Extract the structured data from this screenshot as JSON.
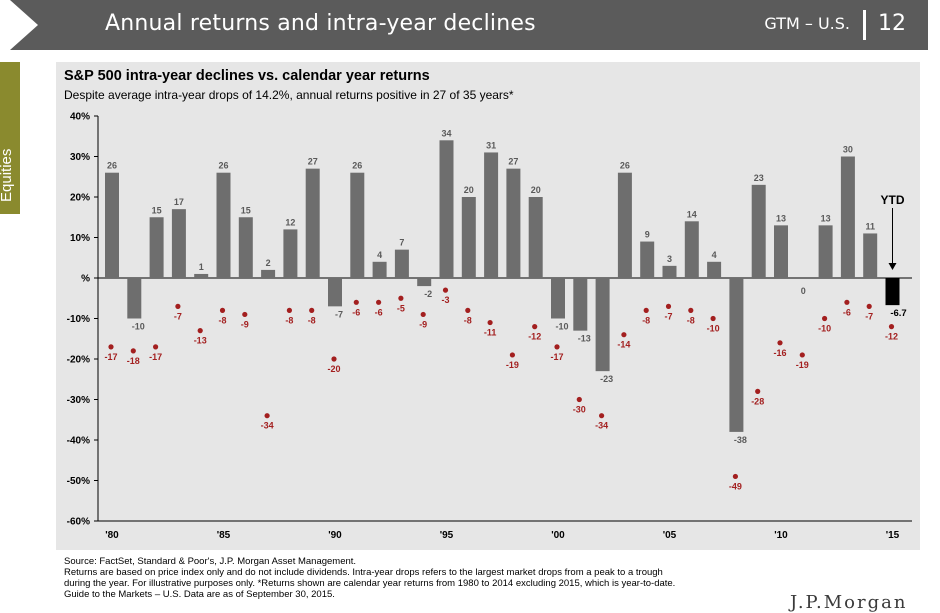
{
  "header": {
    "title": "Annual returns and intra-year declines",
    "section": "GTM – U.S.",
    "page_number": "12"
  },
  "side_tab": {
    "label": "Equities"
  },
  "chart_data": {
    "type": "bar",
    "title": "S&P 500 intra-year declines vs. calendar year returns",
    "subtitle": "Despite average intra-year drops of 14.2%, annual returns positive in 27 of 35 years*",
    "years": [
      1980,
      1981,
      1982,
      1983,
      1984,
      1985,
      1986,
      1987,
      1988,
      1989,
      1990,
      1991,
      1992,
      1993,
      1994,
      1995,
      1996,
      1997,
      1998,
      1999,
      2000,
      2001,
      2002,
      2003,
      2004,
      2005,
      2006,
      2007,
      2008,
      2009,
      2010,
      2011,
      2012,
      2013,
      2014,
      2015
    ],
    "x_tick_labels": [
      "'80",
      "'85",
      "'90",
      "'95",
      "'00",
      "'05",
      "'10",
      "'15"
    ],
    "x_tick_years": [
      1980,
      1985,
      1990,
      1995,
      2000,
      2005,
      2010,
      2015
    ],
    "series": [
      {
        "name": "Calendar year return",
        "values": [
          26,
          -10,
          15,
          17,
          1,
          26,
          15,
          2,
          12,
          27,
          -7,
          26,
          4,
          7,
          -2,
          34,
          20,
          31,
          27,
          20,
          -10,
          -13,
          -23,
          26,
          9,
          3,
          14,
          4,
          -38,
          23,
          13,
          0,
          13,
          30,
          11,
          -6.7
        ]
      },
      {
        "name": "Intra-year decline",
        "values": [
          -17,
          -18,
          -17,
          -7,
          -13,
          -8,
          -9,
          -34,
          -8,
          -8,
          -20,
          -6,
          -6,
          -5,
          -9,
          -3,
          -8,
          -11,
          -19,
          -12,
          -17,
          -30,
          -34,
          -14,
          -8,
          -7,
          -8,
          -10,
          -49,
          -28,
          -16,
          -19,
          -10,
          -6,
          -7,
          -12
        ]
      }
    ],
    "bar_labels": [
      "26",
      "-10",
      "15",
      "17",
      "1",
      "26",
      "15",
      "2",
      "12",
      "27",
      "-7",
      "26",
      "4",
      "7",
      "-2",
      "34",
      "20",
      "31",
      "27",
      "20",
      "-10",
      "-13",
      "-23",
      "26",
      "9",
      "3",
      "14",
      "4",
      "-38",
      "23",
      "13",
      "0",
      "13",
      "30",
      "11",
      "-6.7"
    ],
    "dot_labels": [
      "-17",
      "-18",
      "-17",
      "-7",
      "-13",
      "-8",
      "-9",
      "-34",
      "-8",
      "-8",
      "-20",
      "-6",
      "-6",
      "-5",
      "-9",
      "-3",
      "-8",
      "-11",
      "-19",
      "-12",
      "-17",
      "-30",
      "-34",
      "-14",
      "-8",
      "-7",
      "-8",
      "-10",
      "-49",
      "-28",
      "-16",
      "-19",
      "-10",
      "-6",
      "-7",
      "-12"
    ],
    "ylim": [
      -60,
      40
    ],
    "y_tick_values": [
      40,
      30,
      20,
      10,
      0,
      -10,
      -20,
      -30,
      -40,
      -50,
      -60
    ],
    "y_tick_labels": [
      "40%",
      "30%",
      "20%",
      "10%",
      "%",
      "-10%",
      "-20%",
      "-30%",
      "-40%",
      "-50%",
      "-60%"
    ],
    "ytd_label": "YTD",
    "colors": {
      "bar": "#6e6e6e",
      "ytd_bar": "#000000",
      "dot": "#a31f1f",
      "panel": "#e6e6e6"
    }
  },
  "footnotes": [
    "Source: FactSet, Standard & Poor's, J.P. Morgan Asset Management.",
    "Returns are based on price index only and do not include dividends. Intra-year drops refers to the largest market drops from a peak to a trough",
    "during the year. For illustrative purposes only. *Returns shown are calendar year returns from 1980 to 2014 excluding 2015, which is year-to-date.",
    "Guide to the Markets – U.S. Data are as of September 30, 2015."
  ],
  "logo": {
    "text": "J.P.Morgan"
  }
}
